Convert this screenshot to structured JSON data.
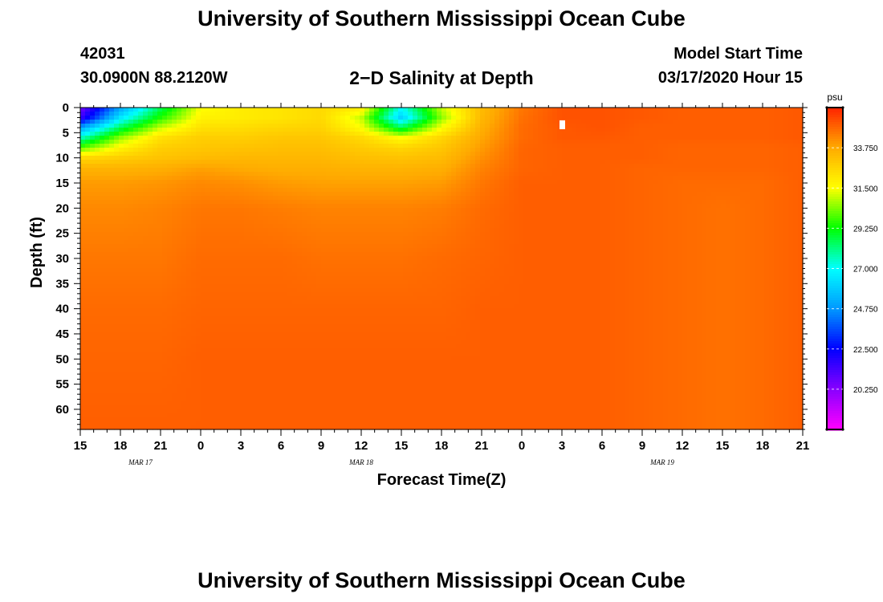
{
  "header": {
    "title": "University of Southern Mississippi Ocean Cube",
    "station_id": "42031",
    "coordinates": "30.0900N 88.2120W",
    "plot_title": "2−D Salinity at Depth",
    "model_start_label": "Model Start Time",
    "model_start_value": "03/17/2020 Hour 15"
  },
  "footer": {
    "title": "University of Southern Mississippi Ocean Cube"
  },
  "colors": {
    "colormap": [
      "#ff00ff",
      "#8800ff",
      "#0000ff",
      "#0099ff",
      "#00ffff",
      "#00ff00",
      "#ffff00",
      "#ffaa00",
      "#ff2200"
    ]
  },
  "chart_data": {
    "type": "heatmap",
    "title": "2−D Salinity at Depth",
    "xlabel": "Forecast Time(Z)",
    "ylabel": "Depth (ft)",
    "x_tick_labels": [
      "15",
      "18",
      "21",
      "0",
      "3",
      "6",
      "9",
      "12",
      "15",
      "18",
      "21",
      "0",
      "3",
      "6",
      "9",
      "12",
      "15",
      "18",
      "21"
    ],
    "date_labels": [
      {
        "label": "MAR  17",
        "at_tick": 1.5
      },
      {
        "label": "MAR  18",
        "at_tick": 7
      },
      {
        "label": "MAR  19",
        "at_tick": 14.5
      }
    ],
    "y_ticks": [
      0,
      5,
      10,
      15,
      20,
      25,
      30,
      35,
      40,
      45,
      50,
      55,
      60
    ],
    "ylim": [
      0,
      64
    ],
    "colorbar": {
      "unit": "psu",
      "range": [
        18.0,
        36.0
      ],
      "tick_values": [
        20.25,
        22.5,
        24.75,
        27.0,
        29.25,
        31.5,
        33.75
      ],
      "tick_labels": [
        "20.250",
        "22.500",
        "24.750",
        "27.000",
        "29.250",
        "31.500",
        "33.750"
      ]
    },
    "salinity_depths_ft": [
      0,
      2,
      4,
      6,
      8,
      10,
      12,
      15,
      20,
      30,
      40,
      50,
      64
    ],
    "salinity_grid": [
      [
        20.5,
        21.5,
        25.0,
        27.5,
        30.0,
        32.5,
        33.5,
        34.0,
        34.3,
        34.6,
        34.8,
        34.9,
        35.0
      ],
      [
        25.0,
        26.5,
        28.5,
        30.5,
        31.8,
        32.8,
        33.5,
        34.0,
        34.3,
        34.6,
        34.8,
        34.9,
        35.0
      ],
      [
        28.5,
        29.5,
        31.0,
        32.3,
        32.8,
        33.1,
        33.6,
        34.1,
        34.4,
        34.6,
        34.8,
        34.9,
        35.0
      ],
      [
        31.5,
        31.8,
        32.3,
        32.8,
        33.0,
        33.3,
        33.9,
        34.3,
        34.6,
        34.8,
        34.9,
        35.0,
        35.0
      ],
      [
        32.0,
        32.0,
        32.4,
        32.8,
        33.1,
        33.4,
        33.7,
        34.2,
        34.6,
        34.8,
        34.9,
        35.0,
        35.0
      ],
      [
        32.2,
        32.2,
        32.6,
        33.0,
        33.2,
        33.4,
        33.6,
        34.0,
        34.5,
        34.8,
        34.9,
        35.0,
        35.0
      ],
      [
        32.5,
        32.5,
        32.7,
        33.0,
        33.2,
        33.4,
        33.6,
        33.9,
        34.4,
        34.7,
        34.9,
        35.0,
        35.0
      ],
      [
        32.0,
        31.0,
        31.5,
        32.5,
        32.9,
        33.2,
        33.5,
        33.9,
        34.4,
        34.7,
        34.9,
        35.0,
        35.0
      ],
      [
        27.0,
        26.0,
        28.5,
        31.5,
        32.6,
        33.1,
        33.5,
        33.9,
        34.4,
        34.7,
        34.9,
        35.0,
        35.0
      ],
      [
        31.0,
        30.5,
        31.5,
        32.6,
        33.0,
        33.3,
        33.6,
        34.0,
        34.5,
        34.8,
        34.9,
        35.0,
        35.0
      ],
      [
        33.3,
        33.4,
        33.6,
        33.8,
        34.0,
        34.2,
        34.4,
        34.6,
        34.8,
        34.9,
        35.0,
        35.0,
        35.0
      ],
      [
        34.6,
        34.7,
        34.8,
        34.8,
        34.9,
        34.9,
        34.9,
        35.0,
        35.0,
        35.0,
        35.0,
        35.0,
        35.0
      ],
      [
        35.2,
        35.2,
        35.1,
        35.1,
        35.0,
        35.0,
        35.0,
        35.0,
        35.0,
        35.0,
        35.0,
        35.0,
        35.0
      ],
      [
        35.2,
        35.2,
        35.2,
        35.1,
        35.0,
        35.0,
        35.0,
        35.0,
        35.0,
        35.0,
        35.0,
        35.0,
        35.0
      ],
      [
        35.1,
        35.1,
        35.0,
        35.0,
        35.0,
        35.0,
        34.9,
        34.9,
        34.9,
        34.9,
        34.9,
        34.9,
        34.9
      ],
      [
        35.0,
        35.0,
        35.0,
        35.0,
        34.9,
        34.9,
        34.9,
        34.8,
        34.8,
        34.8,
        34.8,
        34.8,
        34.8
      ],
      [
        35.0,
        35.0,
        35.0,
        35.0,
        34.9,
        34.9,
        34.9,
        34.8,
        34.7,
        34.7,
        34.7,
        34.7,
        34.7
      ],
      [
        35.0,
        35.0,
        35.0,
        35.0,
        34.9,
        34.9,
        34.9,
        34.8,
        34.8,
        34.8,
        34.8,
        34.8,
        34.8
      ],
      [
        35.1,
        35.1,
        35.1,
        35.1,
        35.0,
        35.0,
        35.0,
        35.0,
        35.0,
        35.0,
        35.0,
        35.0,
        35.0
      ]
    ],
    "marker": {
      "label": "white marker",
      "x_tick": 12,
      "depth_ft": 3.5
    }
  }
}
